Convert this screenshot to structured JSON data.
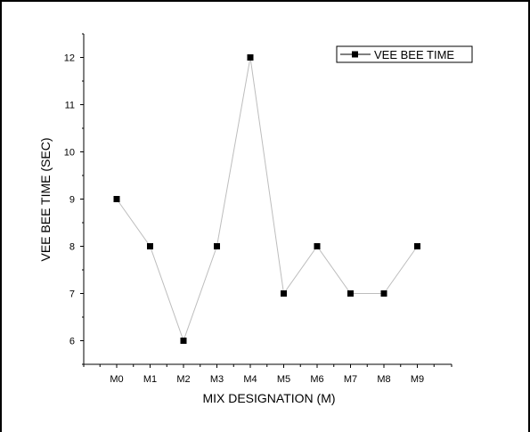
{
  "chart_data": {
    "type": "line",
    "title": "",
    "xlabel": "MIX DESIGNATION (M)",
    "ylabel": "VEE BEE TIME (SEC)",
    "categories": [
      "M0",
      "M1",
      "M2",
      "M3",
      "M4",
      "M5",
      "M6",
      "M7",
      "M8",
      "M9"
    ],
    "series": [
      {
        "name": "VEE BEE TIME",
        "values": [
          9,
          8,
          6,
          8,
          12,
          7,
          8,
          7,
          7,
          8
        ]
      }
    ],
    "yticks": [
      6,
      7,
      8,
      9,
      10,
      11,
      12
    ],
    "ylim": [
      5.5,
      12.5
    ],
    "grid": false,
    "legend": "top-right",
    "colors": {
      "line": "#bdbdbd",
      "marker": "#000000",
      "axis": "#000000"
    }
  }
}
